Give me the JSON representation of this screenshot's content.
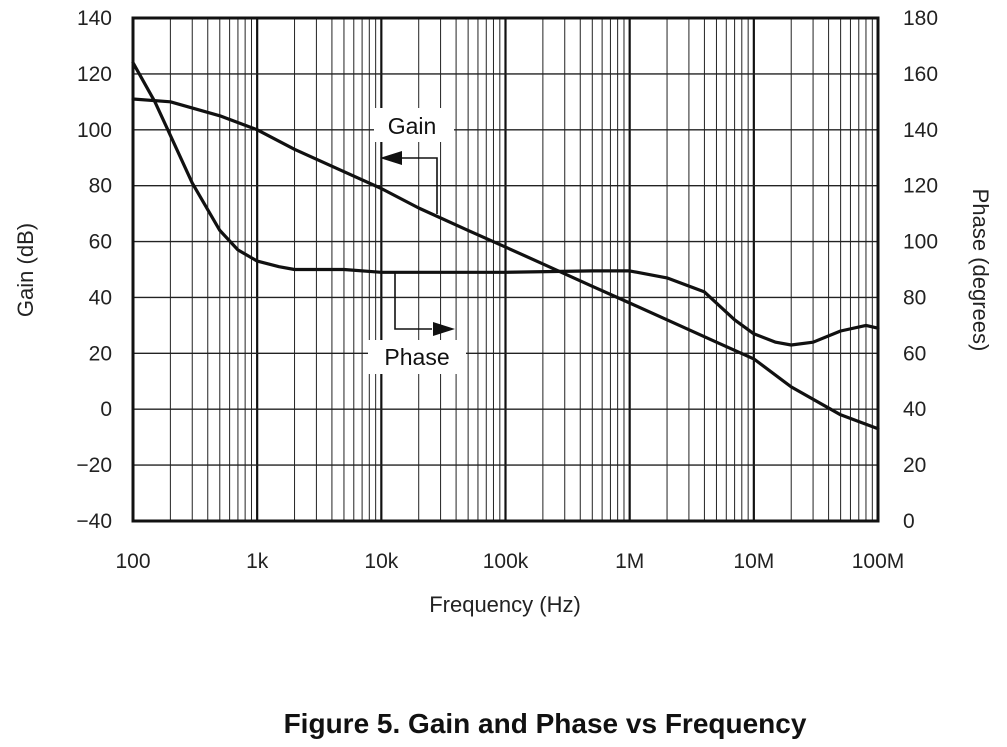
{
  "chart_data": {
    "type": "line",
    "title": "Figure 5. Gain and Phase vs Frequency",
    "xlabel": "Frequency (Hz)",
    "ylabel_left": "Gain (dB)",
    "ylabel_right": "Phase (degrees)",
    "x_scale": "log",
    "xlim": [
      100,
      100000000
    ],
    "ylim_left": [
      -40,
      140
    ],
    "ylim_right": [
      0,
      180
    ],
    "grid": true,
    "x_ticks": [
      {
        "value": 100,
        "label": "100"
      },
      {
        "value": 1000,
        "label": "1k"
      },
      {
        "value": 10000,
        "label": "10k"
      },
      {
        "value": 100000,
        "label": "100k"
      },
      {
        "value": 1000000,
        "label": "1M"
      },
      {
        "value": 10000000,
        "label": "10M"
      },
      {
        "value": 100000000,
        "label": "100M"
      }
    ],
    "y_ticks_left": [
      "140",
      "120",
      "100",
      "80",
      "60",
      "40",
      "20",
      "0",
      "−20",
      "−40"
    ],
    "y_ticks_right": [
      "180",
      "160",
      "140",
      "120",
      "100",
      "80",
      "60",
      "40",
      "20",
      "0"
    ],
    "annotations": [
      {
        "text": "Gain",
        "series": "Gain"
      },
      {
        "text": "Phase",
        "series": "Phase"
      }
    ],
    "series": [
      {
        "name": "Gain",
        "axis": "left",
        "x": [
          100,
          200,
          500,
          1000,
          2000,
          5000,
          10000,
          20000,
          50000,
          100000,
          200000,
          500000,
          1000000,
          2000000,
          5000000,
          10000000,
          20000000,
          50000000,
          100000000
        ],
        "y": [
          111,
          110,
          105,
          100,
          93,
          85,
          79,
          72,
          64,
          58,
          52,
          44,
          38,
          32,
          24,
          18,
          8,
          -2,
          -7
        ]
      },
      {
        "name": "Phase",
        "axis": "right",
        "x": [
          100,
          150,
          200,
          300,
          500,
          700,
          1000,
          1500,
          2000,
          5000,
          10000,
          100000,
          500000,
          1000000,
          2000000,
          4000000,
          7000000,
          10000000,
          15000000,
          20000000,
          30000000,
          50000000,
          80000000,
          100000000
        ],
        "y": [
          164,
          150,
          138,
          121,
          104,
          97,
          93,
          91,
          90,
          90,
          89,
          89,
          89.5,
          89.5,
          87,
          82,
          72,
          67,
          64,
          63,
          64,
          68,
          70,
          69
        ]
      }
    ]
  }
}
